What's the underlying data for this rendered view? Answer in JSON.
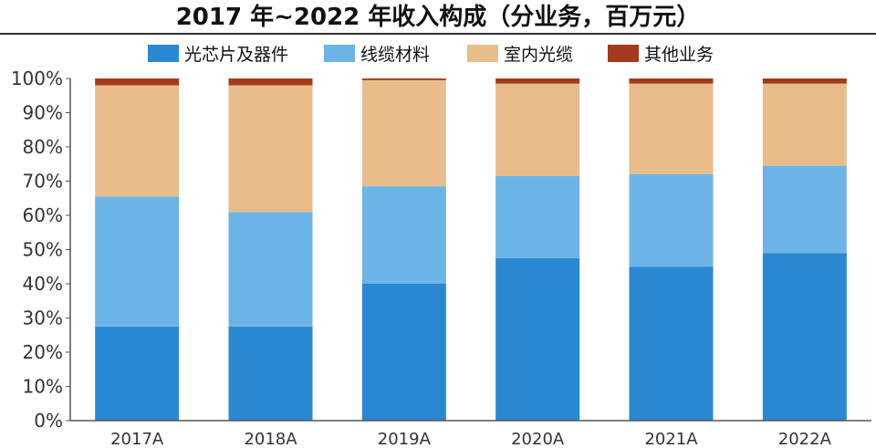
{
  "chart_data": {
    "type": "bar",
    "stacked": true,
    "title": "2017 年~2022 年收入构成（分业务，百万元）",
    "xlabel": "",
    "ylabel": "",
    "categories": [
      "2017A",
      "2018A",
      "2019A",
      "2020A",
      "2021A",
      "2022A"
    ],
    "ylim": [
      0,
      100
    ],
    "y_ticks": [
      "0%",
      "10%",
      "20%",
      "30%",
      "40%",
      "50%",
      "60%",
      "70%",
      "80%",
      "90%",
      "100%"
    ],
    "y_tick_values": [
      0,
      10,
      20,
      30,
      40,
      50,
      60,
      70,
      80,
      90,
      100
    ],
    "grid": false,
    "legend_position": "top",
    "series": [
      {
        "name": "光芯片及器件",
        "color": "#2a88d2",
        "values": [
          27.5,
          27.5,
          40,
          47.5,
          45,
          49
        ]
      },
      {
        "name": "线缆材料",
        "color": "#6cb4e6",
        "values": [
          38,
          33.5,
          28.5,
          24,
          27,
          25.5
        ]
      },
      {
        "name": "室内光缆",
        "color": "#e8bd8a",
        "values": [
          32.5,
          37,
          31,
          27,
          26.5,
          24
        ]
      },
      {
        "name": "其他业务",
        "color": "#a23a1b",
        "values": [
          2,
          2,
          0.5,
          1.5,
          1.5,
          1.5
        ]
      }
    ]
  }
}
